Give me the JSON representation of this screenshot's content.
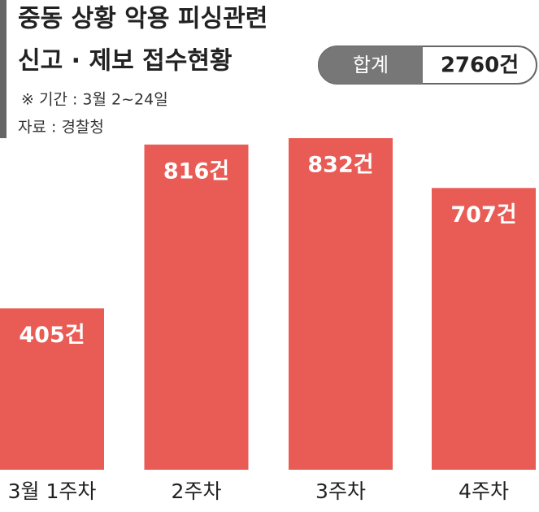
{
  "chart_data": {
    "type": "bar",
    "title": "중동 상황 악용 피싱관련",
    "subtitle": "신고 · 제보 접수현황",
    "total_label": "합계",
    "total": "2760건",
    "note": "※  기간 : 3월 2~24일",
    "source": "자료 : 경찰청",
    "categories": [
      "3월 1주차",
      "2주차",
      "3주차",
      "4주차"
    ],
    "values": [
      405,
      816,
      832,
      707
    ],
    "value_labels": [
      "405건",
      "816건",
      "832건",
      "707건"
    ],
    "color": "#e85c55"
  }
}
